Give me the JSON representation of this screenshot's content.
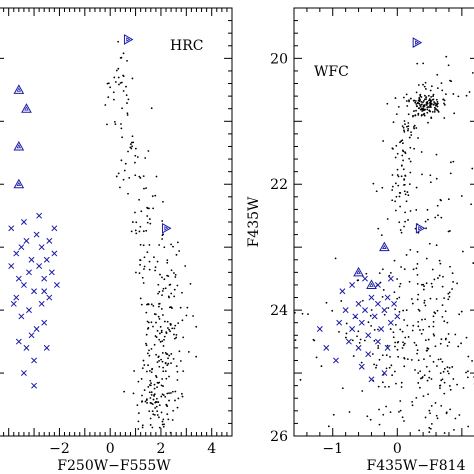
{
  "chart_data": [
    {
      "type": "scatter",
      "panel_label": "HRC",
      "xlabel": "F250W−F555W",
      "ylabel": "",
      "xlim": [
        -4.5,
        4.8
      ],
      "ylim": [
        26.0,
        19.2
      ],
      "x_ticks": [
        "−2",
        "0",
        "2",
        "4"
      ],
      "x_tick_values": [
        -2,
        0,
        2,
        4
      ],
      "colors": {
        "main_sequence": "#000000",
        "blue_stragglers": "#1a1aa8",
        "hb_stars": "#1a1aa8"
      },
      "series": [
        {
          "name": "",
          "marker": "dot",
          "seed": 7,
          "clumps": [
            {
              "x": 0.3,
              "y": 20.4,
              "sx": 0.25,
              "sy": 0.35,
              "n": 30
            },
            {
              "x": 0.7,
              "y": 21.4,
              "sx": 0.3,
              "sy": 0.4,
              "n": 30
            },
            {
              "x": 1.4,
              "y": 22.6,
              "sx": 0.35,
              "sy": 0.5,
              "n": 40
            },
            {
              "x": 2.1,
              "y": 23.6,
              "sx": 0.45,
              "sy": 0.5,
              "n": 80
            },
            {
              "x": 2.0,
              "y": 24.6,
              "sx": 0.45,
              "sy": 0.45,
              "n": 90
            },
            {
              "x": 1.9,
              "y": 25.5,
              "sx": 0.45,
              "sy": 0.35,
              "n": 100
            }
          ]
        },
        {
          "name": "",
          "marker": "x",
          "points": [
            [
              -3.9,
              23.3
            ],
            [
              -3.7,
              23.1
            ],
            [
              -3.6,
              23.5
            ],
            [
              -3.5,
              23.0
            ],
            [
              -3.4,
              23.6
            ],
            [
              -3.3,
              22.9
            ],
            [
              -3.2,
              23.4
            ],
            [
              -3.1,
              23.2
            ],
            [
              -3.0,
              23.7
            ],
            [
              -2.9,
              22.8
            ],
            [
              -2.8,
              23.3
            ],
            [
              -2.7,
              23.0
            ],
            [
              -2.6,
              23.5
            ],
            [
              -2.5,
              23.2
            ],
            [
              -2.4,
              22.9
            ],
            [
              -2.3,
              23.4
            ],
            [
              -2.2,
              23.1
            ],
            [
              -2.1,
              23.6
            ],
            [
              -3.8,
              23.9
            ],
            [
              -3.5,
              24.1
            ],
            [
              -3.2,
              24.0
            ],
            [
              -2.9,
              24.3
            ],
            [
              -2.6,
              24.2
            ],
            [
              -3.6,
              24.5
            ],
            [
              -3.3,
              24.6
            ],
            [
              -3.0,
              24.8
            ],
            [
              -2.7,
              23.9
            ],
            [
              -2.4,
              23.8
            ],
            [
              -3.9,
              22.7
            ],
            [
              -3.4,
              22.6
            ],
            [
              -2.8,
              22.5
            ],
            [
              -2.2,
              22.7
            ],
            [
              -3.7,
              23.8
            ],
            [
              -3.1,
              24.4
            ],
            [
              -2.5,
              24.6
            ],
            [
              -3.4,
              25.0
            ],
            [
              -3.0,
              25.2
            ],
            [
              -2.6,
              23.7
            ]
          ]
        },
        {
          "name": "",
          "marker": "triangle",
          "points": [
            [
              -3.6,
              20.5
            ],
            [
              -3.3,
              20.8
            ],
            [
              -3.6,
              21.4
            ],
            [
              -3.6,
              22.0
            ]
          ]
        },
        {
          "name": "",
          "marker": "triangle-right",
          "points": [
            [
              0.7,
              19.7
            ],
            [
              2.2,
              22.7
            ]
          ]
        }
      ]
    },
    {
      "type": "scatter",
      "panel_label": "WFC",
      "xlabel": "F435W−F814",
      "ylabel": "F435W",
      "xlim": [
        -1.6,
        1.25
      ],
      "ylim": [
        26.0,
        19.2
      ],
      "x_ticks": [
        "−1",
        "0"
      ],
      "x_tick_values": [
        -1,
        0
      ],
      "y_ticks": [
        "20",
        "22",
        "24",
        "26"
      ],
      "y_tick_values": [
        20,
        22,
        24,
        26
      ],
      "colors": {
        "main_sequence": "#000000",
        "blue_stragglers": "#1a1aa8",
        "hb_stars": "#1a1aa8"
      },
      "series": [
        {
          "name": "",
          "marker": "dot",
          "seed": 11,
          "clumps": [
            {
              "x": 0.45,
              "y": 20.75,
              "sx": 0.12,
              "sy": 0.1,
              "n": 120
            },
            {
              "x": 0.55,
              "y": 20.5,
              "sx": 0.25,
              "sy": 0.25,
              "n": 40
            },
            {
              "x": 0.15,
              "y": 21.3,
              "sx": 0.1,
              "sy": 0.25,
              "n": 35
            },
            {
              "x": 0.05,
              "y": 22.0,
              "sx": 0.1,
              "sy": 0.4,
              "n": 40
            },
            {
              "x": 0.4,
              "y": 22.5,
              "sx": 0.35,
              "sy": 0.8,
              "n": 60
            },
            {
              "x": 0.3,
              "y": 24.0,
              "sx": 0.4,
              "sy": 0.6,
              "n": 120
            },
            {
              "x": 0.5,
              "y": 25.2,
              "sx": 0.4,
              "sy": 0.5,
              "n": 120
            },
            {
              "x": -0.6,
              "y": 24.5,
              "sx": 0.5,
              "sy": 0.6,
              "n": 60
            }
          ]
        },
        {
          "name": "",
          "marker": "x",
          "points": [
            [
              -0.9,
              24.2
            ],
            [
              -0.8,
              24.0
            ],
            [
              -0.7,
              24.3
            ],
            [
              -0.65,
              24.1
            ],
            [
              -0.6,
              23.9
            ],
            [
              -0.55,
              24.2
            ],
            [
              -0.5,
              24.0
            ],
            [
              -0.45,
              24.4
            ],
            [
              -0.4,
              23.8
            ],
            [
              -0.35,
              24.1
            ],
            [
              -0.3,
              23.9
            ],
            [
              -0.25,
              24.3
            ],
            [
              -0.2,
              24.0
            ],
            [
              -0.15,
              23.8
            ],
            [
              -0.1,
              24.2
            ],
            [
              -0.05,
              23.9
            ],
            [
              0.0,
              24.1
            ],
            [
              -0.75,
              24.5
            ],
            [
              -0.6,
              24.6
            ],
            [
              -0.45,
              24.7
            ],
            [
              -0.3,
              24.5
            ],
            [
              -0.15,
              24.6
            ],
            [
              -0.85,
              23.7
            ],
            [
              -0.7,
              23.6
            ],
            [
              -0.5,
              23.5
            ],
            [
              -0.3,
              23.6
            ],
            [
              -0.1,
              23.5
            ],
            [
              -0.95,
              24.8
            ],
            [
              -0.55,
              24.9
            ],
            [
              -0.2,
              25.0
            ],
            [
              -1.2,
              24.3
            ],
            [
              -1.1,
              24.6
            ],
            [
              -0.4,
              25.1
            ]
          ]
        },
        {
          "name": "",
          "marker": "triangle",
          "points": [
            [
              -0.6,
              23.4
            ],
            [
              -0.4,
              23.6
            ],
            [
              -0.2,
              23.0
            ]
          ]
        },
        {
          "name": "",
          "marker": "triangle-right",
          "points": [
            [
              0.3,
              19.75
            ],
            [
              0.35,
              22.7
            ]
          ]
        }
      ]
    }
  ]
}
